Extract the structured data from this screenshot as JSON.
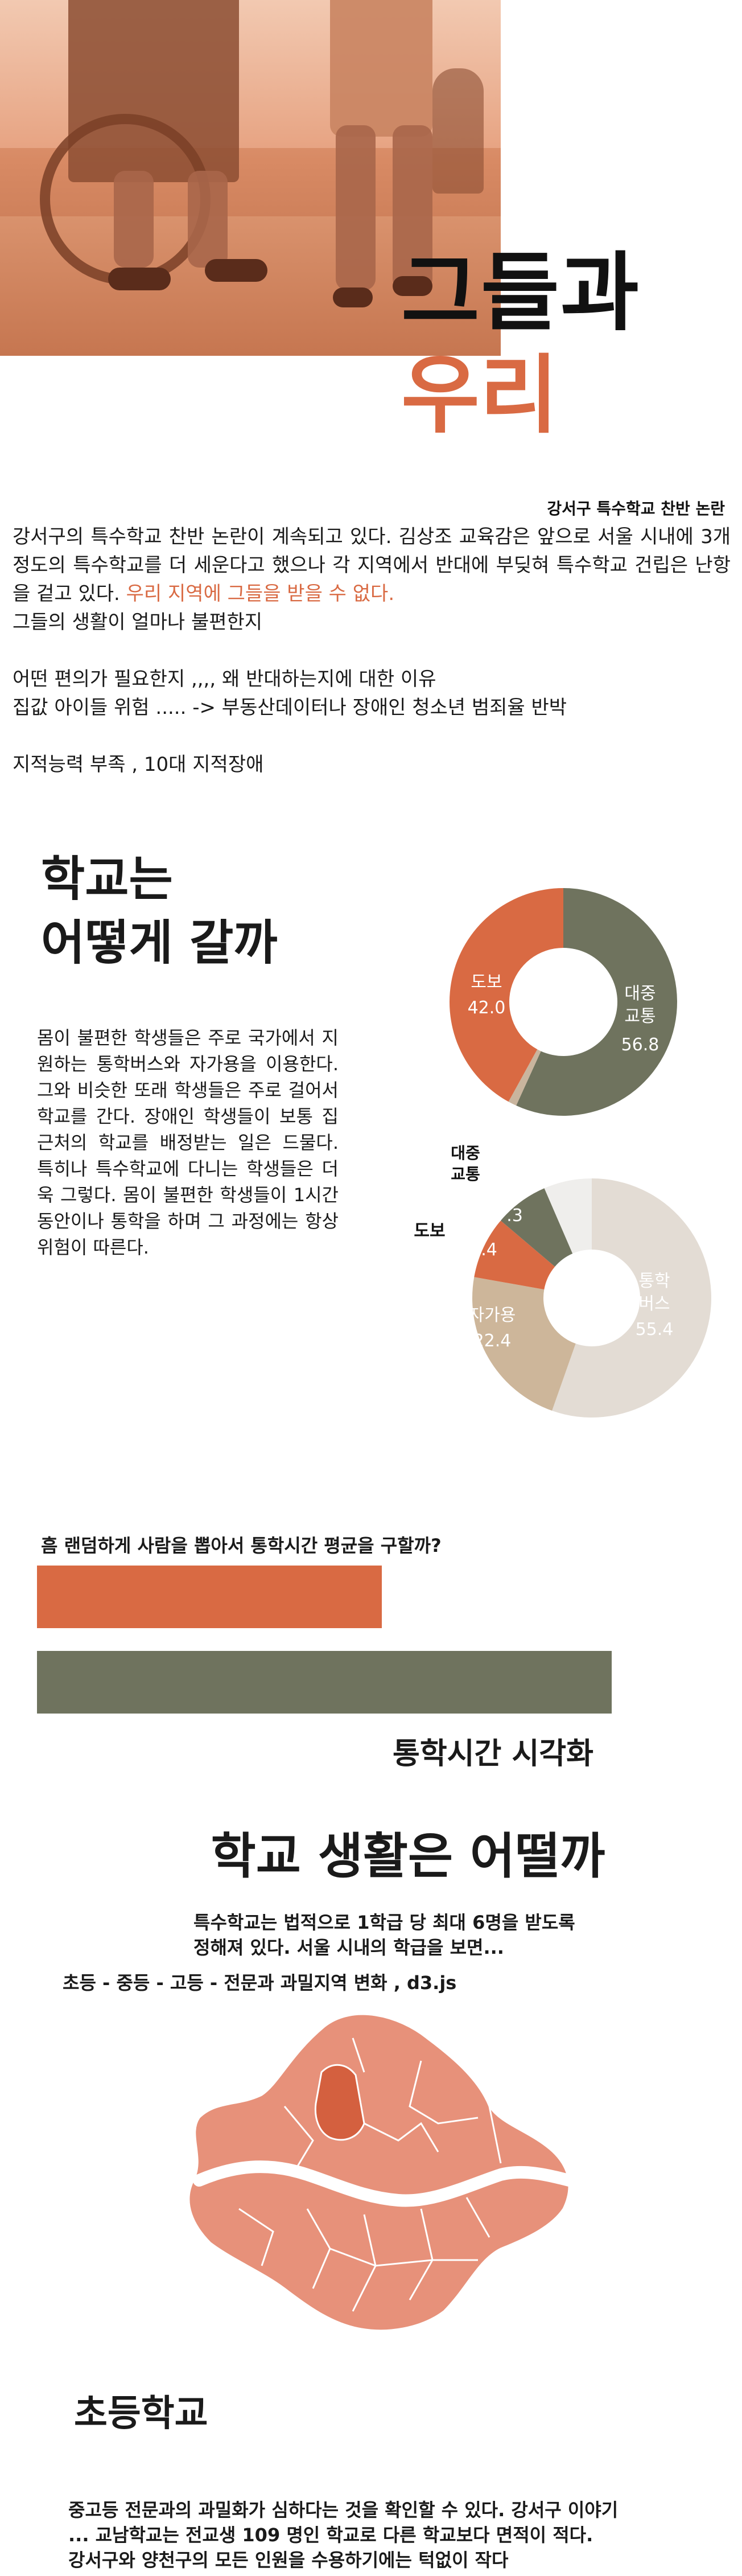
{
  "hero": {
    "title": "그들과",
    "subtitle": "우리",
    "caption": "강서구 특수학교 찬반 논란"
  },
  "intro": {
    "p1_prefix": "강서구의 특수학교 찬반 논란이 계속되고 있다. 김상조 교육감은 앞으로 서울 시내에 3개 정도의 특수학교를 더 세운다고 했으나 각 지역에서 반대에 부딪혀 특수학교 건립은 난항을 겉고 있다. ",
    "p1_highlight": "우리 지역에 그들을 받을 수 없다.",
    "line2": "그들의 생활이 얼마나 불편한지",
    "line3": "어떤 편의가 필요한지 ,,,, 왜 반대하는지에 대한 이유",
    "line4": "집값 아이들 위험 ..... -> 부동산데이터나 장애인 청소년 범죄율 반박",
    "line5": "지적능력 부족 , 10대 지적장애"
  },
  "commute": {
    "heading_line1": "학교는",
    "heading_line2": "어떻게 갈까",
    "body": "몸이 불편한 학생들은 주로 국가에서 지원하는 통학버스와 자가용을 이용한다. 그와 비슷한 또래 학생들은 주로 걸어서 학교를 간다. 장애인 학생들이 보통 집 근처의 학교를 배정받는 일은 드물다. 특히나 특수학교에 다니는 학생들은 더욱 그렇다. 몸이 불편한 학생들이 1시간 동안이나 통학을 하며 그 과정에는 항상 위험이 따른다."
  },
  "chart_data": [
    {
      "type": "pie",
      "categories": [
        "도보",
        "대중\n교통",
        ""
      ],
      "values": [
        42.0,
        56.8,
        1.2
      ],
      "labels": {
        "walk": "도보",
        "walk_value": "42.0",
        "transit_line1": "대중",
        "transit_line2": "교통",
        "transit_value": "56.8"
      },
      "colors": [
        "#d96a43",
        "#6f735e",
        "#c9b59e"
      ]
    },
    {
      "type": "pie",
      "categories": [
        "통학버스",
        "자가용",
        "도보",
        "대중교통",
        ""
      ],
      "values": [
        55.4,
        22.4,
        8.4,
        7.3,
        6.5
      ],
      "labels": {
        "bus_line1": "통학",
        "bus_line2": "버스",
        "bus_value": "55.4",
        "car": "자가용",
        "car_value": "22.4",
        "walk": "도보",
        "walk_value": "8.4",
        "transit_line1": "대중",
        "transit_line2": "교통",
        "transit_value": "7.3"
      },
      "colors": [
        "#e3dcd4",
        "#cdb69a",
        "#d96a43",
        "#6f735e",
        "#efeeec"
      ]
    },
    {
      "type": "bar",
      "title": "흠 랜덤하게 사람을 뽑아서 통학시간 평균을 구할까?",
      "xlabel": "통학시간 시각화",
      "series": [
        {
          "values": [
            0.6
          ]
        },
        {
          "values": [
            1.0
          ]
        }
      ],
      "colors": [
        "#d96a43",
        "#6f735e"
      ]
    }
  ],
  "school": {
    "heading": "학교 생활은 어떨까",
    "desc_line1": "특수학교는 법적으로 1학급 당 최대 6명을 받도록",
    "desc_line2": "정해져 있다. 서울 시내의 학급을 보면...",
    "steps": "초등 - 중등 - 고등 - 전문과 과밀지역 변화 , d3.js",
    "map_label": "초등학교",
    "map_color": "#e7917a",
    "map_highlight": "#d4603f",
    "outro_line1": "중고등 전문과의 과밀화가 심하다는 것을 확인할 수 있다. 강서구 이야기",
    "outro_line2": "... 교남학교는 전교생 109 명인 학교로 다른 학교보다 면적이 적다.",
    "outro_line3": "강서구와 양천구의 모든 인원을 수용하기에는 턱없이 작다"
  }
}
